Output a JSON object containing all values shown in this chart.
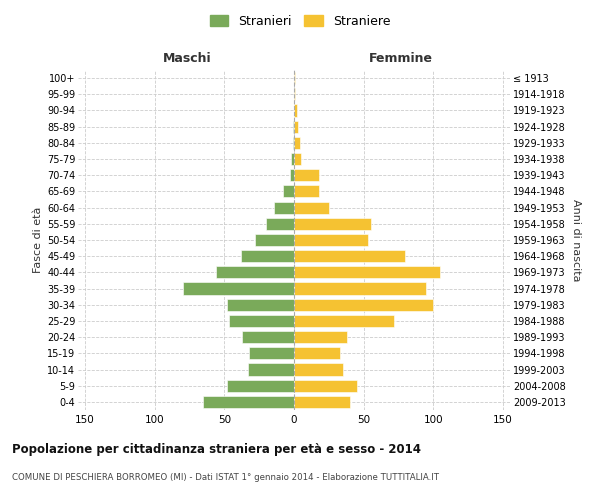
{
  "age_groups": [
    "0-4",
    "5-9",
    "10-14",
    "15-19",
    "20-24",
    "25-29",
    "30-34",
    "35-39",
    "40-44",
    "45-49",
    "50-54",
    "55-59",
    "60-64",
    "65-69",
    "70-74",
    "75-79",
    "80-84",
    "85-89",
    "90-94",
    "95-99",
    "100+"
  ],
  "birth_years": [
    "2009-2013",
    "2004-2008",
    "1999-2003",
    "1994-1998",
    "1989-1993",
    "1984-1988",
    "1979-1983",
    "1974-1978",
    "1969-1973",
    "1964-1968",
    "1959-1963",
    "1954-1958",
    "1949-1953",
    "1944-1948",
    "1939-1943",
    "1934-1938",
    "1929-1933",
    "1924-1928",
    "1919-1923",
    "1914-1918",
    "≤ 1913"
  ],
  "maschi": [
    65,
    48,
    33,
    32,
    37,
    47,
    48,
    80,
    56,
    38,
    28,
    20,
    14,
    8,
    3,
    2,
    1,
    1,
    0,
    0,
    0
  ],
  "femmine": [
    40,
    45,
    35,
    33,
    38,
    72,
    100,
    95,
    105,
    80,
    53,
    55,
    25,
    18,
    18,
    5,
    4,
    3,
    2,
    1,
    1
  ],
  "color_maschi": "#7aaa5a",
  "color_femmine": "#f5c232",
  "title": "Popolazione per cittadinanza straniera per età e sesso - 2014",
  "subtitle": "COMUNE DI PESCHIERA BORROMEO (MI) - Dati ISTAT 1° gennaio 2014 - Elaborazione TUTTITALIA.IT",
  "legend_maschi": "Stranieri",
  "legend_femmine": "Straniere",
  "header_left": "Maschi",
  "header_right": "Femmine",
  "ylabel_left": "Fasce di età",
  "ylabel_right": "Anni di nascita",
  "xlim": 155,
  "background_color": "#ffffff",
  "grid_color": "#cccccc"
}
